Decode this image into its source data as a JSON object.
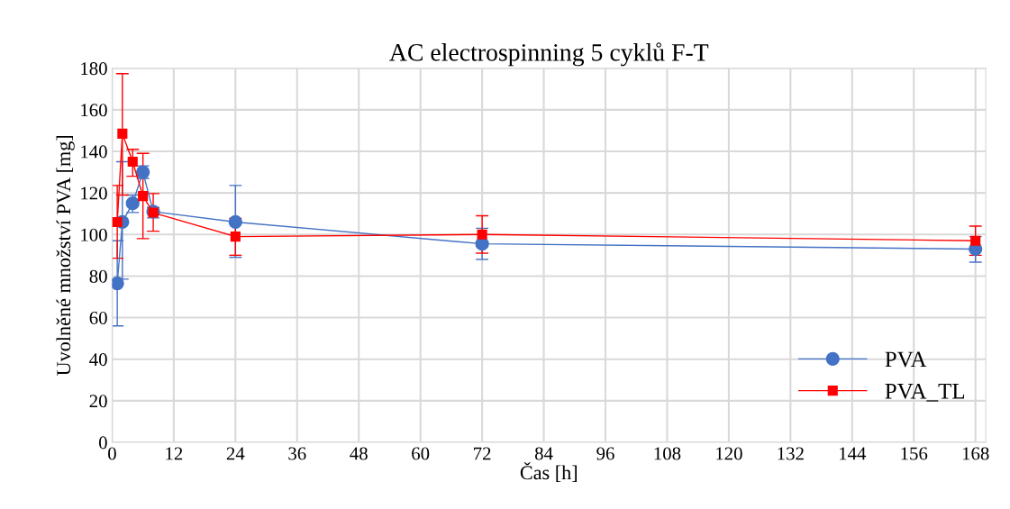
{
  "chart_data": {
    "type": "line",
    "title": "AC electrospinning 5 cyklů F-T",
    "xlabel": "Čas [h]",
    "ylabel": "Uvolněné množství PVA [mg]",
    "xlim": [
      0,
      170
    ],
    "xticks": [
      0,
      12,
      24,
      36,
      48,
      60,
      72,
      84,
      96,
      108,
      120,
      132,
      144,
      156,
      168
    ],
    "ylim": [
      0,
      180
    ],
    "yticks": [
      0,
      20,
      40,
      60,
      80,
      100,
      120,
      140,
      160,
      180
    ],
    "grid": true,
    "legend": "bottom right",
    "series": [
      {
        "name": "PVA",
        "color": "#4472c4",
        "marker": "circle",
        "x": [
          1,
          2,
          4,
          6,
          8,
          24,
          72,
          168
        ],
        "values": [
          76.5,
          106,
          115,
          130,
          111,
          106,
          95.5,
          93
        ],
        "errors": [
          [
            56,
            97
          ],
          [
            78.5,
            135
          ],
          [
            110.6,
            119
          ],
          [
            127,
            133
          ],
          [
            108,
            113
          ],
          [
            89,
            123.6
          ],
          [
            88,
            103
          ],
          [
            86.7,
            99
          ]
        ]
      },
      {
        "name": "PVA_TL",
        "color": "#ff0000",
        "marker": "square",
        "x": [
          1,
          2,
          4,
          6,
          8,
          24,
          72,
          168
        ],
        "values": [
          106,
          148.5,
          135,
          118.5,
          110.5,
          99,
          100,
          97
        ],
        "errors": [
          [
            88.6,
            123.6
          ],
          [
            119,
            177.4
          ],
          [
            128,
            141
          ],
          [
            98,
            139
          ],
          [
            101.6,
            119.7
          ],
          [
            90,
            107.7
          ],
          [
            91,
            109
          ],
          [
            90,
            104
          ]
        ]
      }
    ]
  }
}
